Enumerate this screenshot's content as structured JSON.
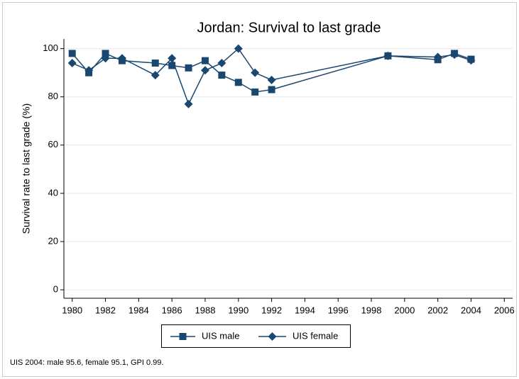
{
  "chart_data": {
    "type": "line",
    "title": "Jordan: Survival to last grade",
    "y_label": "Survival rate to last grade (%)",
    "note": "UIS 2004: male 95.6, female 95.1, GPI 0.99.",
    "x": [
      1980,
      1981,
      1982,
      1983,
      1985,
      1986,
      1987,
      1988,
      1989,
      1990,
      1991,
      1992,
      1999,
      2002,
      2003,
      2004
    ],
    "series": [
      {
        "name": "UIS male",
        "color": "#1a476f",
        "marker": "square",
        "values": [
          98,
          90,
          98,
          95,
          94,
          93,
          92,
          95,
          89,
          86,
          82,
          83,
          97,
          95.4,
          98,
          95.6
        ]
      },
      {
        "name": "UIS female",
        "color": "#1a476f",
        "marker": "diamond",
        "values": [
          94,
          91,
          96,
          96,
          89,
          96,
          77,
          91,
          94,
          100,
          90,
          87,
          97,
          96.5,
          97.5,
          95.1
        ]
      }
    ],
    "xlim": [
      1979.5,
      2006.5
    ],
    "xticks": [
      1980,
      1982,
      1984,
      1986,
      1988,
      1990,
      1992,
      1994,
      1996,
      1998,
      2000,
      2002,
      2004,
      2006
    ],
    "ylim": [
      -3.5,
      104
    ],
    "yticks": [
      0,
      20,
      40,
      60,
      80,
      100
    ],
    "grid": true,
    "legend": "bottom"
  }
}
